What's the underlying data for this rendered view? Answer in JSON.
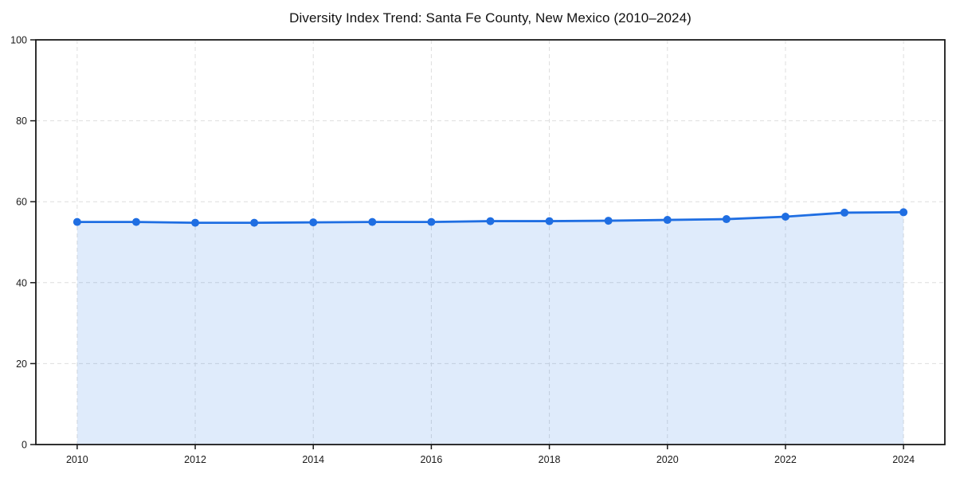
{
  "chart_data": {
    "type": "line",
    "title": "Diversity Index Trend: Santa Fe County, New Mexico (2010–2024)",
    "xlabel": "",
    "ylabel": "",
    "x": [
      2010,
      2011,
      2012,
      2013,
      2014,
      2015,
      2016,
      2017,
      2018,
      2019,
      2020,
      2021,
      2022,
      2023,
      2024
    ],
    "series": [
      {
        "name": "Diversity Index",
        "values": [
          55.0,
          55.0,
          54.8,
          54.8,
          54.9,
          55.0,
          55.0,
          55.2,
          55.2,
          55.3,
          55.5,
          55.7,
          56.3,
          57.3,
          57.4
        ]
      }
    ],
    "xlim": [
      2009.3,
      2024.7
    ],
    "ylim": [
      0,
      100
    ],
    "x_ticks": [
      2010,
      2012,
      2014,
      2016,
      2018,
      2020,
      2022,
      2024
    ],
    "y_ticks": [
      0,
      20,
      40,
      60,
      80,
      100
    ],
    "grid": true,
    "grid_style": "dashed",
    "legend": "none",
    "area_fill": true,
    "marker": "circle",
    "colors": {
      "line": "#1f6ee2",
      "marker": "#1f6ee2",
      "area_fill": "#1f6ee2",
      "area_fill_opacity": 0.14,
      "grid": "#dedede",
      "axis": "#1a1a1a",
      "tick_label": "#1a1a1a",
      "title": "#111111",
      "background": "#ffffff"
    }
  }
}
